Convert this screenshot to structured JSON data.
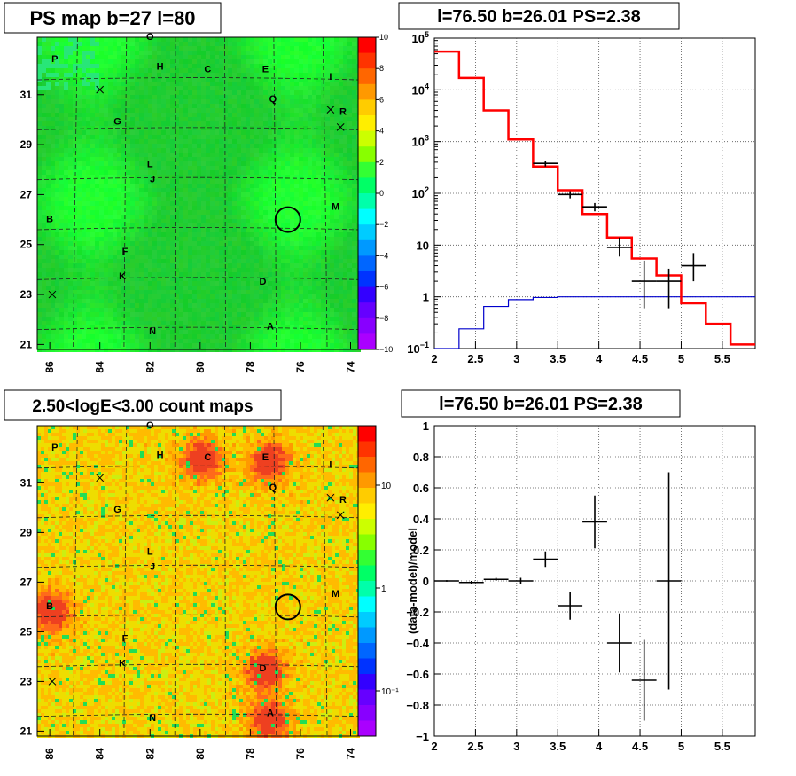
{
  "panels": {
    "ps_map": {
      "title": "PS map b=27 l=80",
      "xticks": [
        "86",
        "84",
        "82",
        "80",
        "78",
        "76",
        "74"
      ],
      "yticks": [
        "31",
        "29",
        "27",
        "25",
        "23",
        "21"
      ],
      "colorbar_ticks": [
        "10",
        "8",
        "6",
        "4",
        "2",
        "0",
        "−2",
        "−4",
        "−6",
        "−8",
        "−10"
      ]
    },
    "spectrum": {
      "title": "l=76.50 b=26.01 PS=2.38"
    },
    "count_map": {
      "title": "2.50<logE<3.00 count maps",
      "xticks": [
        "86",
        "84",
        "82",
        "80",
        "78",
        "76",
        "74"
      ],
      "yticks": [
        "31",
        "29",
        "27",
        "25",
        "23",
        "21"
      ],
      "colorbar_ticks": [
        "10",
        "1",
        "10⁻¹"
      ]
    },
    "residual": {
      "title": "l=76.50 b=26.01 PS=2.38"
    }
  },
  "map_labels": [
    "O",
    "P",
    "H",
    "C",
    "E",
    "I",
    "Q",
    "R",
    "G",
    "L",
    "J",
    "B",
    "M",
    "F",
    "K",
    "D",
    "N",
    "A"
  ],
  "colors": {
    "model": "#ff0000",
    "background": "#0000cc",
    "data": "#000000",
    "map_green": "#33ee33",
    "map_hot": "#ff5a2a"
  },
  "chart_data": [
    {
      "type": "heatmap",
      "title": "PS map b=27 l=80",
      "xlabel": "",
      "ylabel": "",
      "xlim": [
        86.5,
        73.7
      ],
      "ylim": [
        20.8,
        33.3
      ],
      "x_ticks": [
        86,
        84,
        82,
        80,
        78,
        76,
        74
      ],
      "y_ticks": [
        21,
        23,
        25,
        27,
        29,
        31
      ],
      "zlim": [
        -10,
        10
      ],
      "colormap": "rainbow",
      "source_labels": [
        {
          "name": "O",
          "x": 82.0,
          "y": 33.2
        },
        {
          "name": "P",
          "x": 85.8,
          "y": 32.3
        },
        {
          "name": "H",
          "x": 81.6,
          "y": 32.0
        },
        {
          "name": "C",
          "x": 79.7,
          "y": 31.9
        },
        {
          "name": "E",
          "x": 77.4,
          "y": 31.9
        },
        {
          "name": "I",
          "x": 74.8,
          "y": 31.6
        },
        {
          "name": "Q",
          "x": 77.1,
          "y": 30.7
        },
        {
          "name": "R",
          "x": 74.3,
          "y": 30.2
        },
        {
          "name": "G",
          "x": 83.3,
          "y": 29.8
        },
        {
          "name": "L",
          "x": 82.0,
          "y": 28.1
        },
        {
          "name": "J",
          "x": 81.9,
          "y": 27.5
        },
        {
          "name": "B",
          "x": 86.0,
          "y": 25.9
        },
        {
          "name": "M",
          "x": 74.6,
          "y": 26.4
        },
        {
          "name": "F",
          "x": 83.0,
          "y": 24.6
        },
        {
          "name": "K",
          "x": 83.1,
          "y": 23.6
        },
        {
          "name": "D",
          "x": 77.5,
          "y": 23.4
        },
        {
          "name": "N",
          "x": 81.9,
          "y": 21.4
        },
        {
          "name": "A",
          "x": 77.2,
          "y": 21.6
        }
      ],
      "circle": {
        "x": 76.5,
        "y": 26.0
      }
    },
    {
      "type": "line",
      "title": "l=76.50 b=26.01 PS=2.38",
      "xlabel": "",
      "ylabel": "",
      "xlim": [
        2,
        5.9
      ],
      "ylim": [
        0.1,
        100000
      ],
      "yscale": "log",
      "x_ticks": [
        2,
        2.5,
        3,
        3.5,
        4,
        4.5,
        5,
        5.5
      ],
      "y_ticks": [
        0.1,
        1,
        10,
        100,
        1000,
        10000,
        100000
      ],
      "grid": true,
      "series": [
        {
          "type": "step",
          "edges": [
            2.0,
            2.3,
            2.6,
            2.9,
            3.2,
            3.5,
            3.8,
            4.1,
            4.4,
            4.7,
            5.0,
            5.3,
            5.6,
            5.9
          ],
          "values": [
            55000,
            17000,
            4000,
            1100,
            330,
            115,
            40,
            14,
            5.5,
            2.6,
            0.75,
            0.3,
            0.12
          ]
        },
        {
          "type": "step",
          "edges": [
            2.0,
            2.3,
            2.6,
            2.9,
            3.2,
            3.5,
            3.8,
            4.1,
            4.4,
            4.7,
            5.0,
            5.3,
            5.6,
            5.9
          ],
          "values": [
            0.08,
            0.24,
            0.65,
            0.88,
            0.97,
            1.0,
            1.0,
            1.0,
            1.0,
            1.0,
            1.0,
            1.0,
            1.0
          ]
        },
        {
          "type": "errorbar",
          "x": [
            3.35,
            3.65,
            3.95,
            4.25,
            4.55,
            4.85,
            5.15
          ],
          "y": [
            380,
            95,
            55,
            9,
            2,
            2,
            4
          ],
          "xerr": 0.15,
          "ylo": [
            330,
            80,
            45,
            6,
            0.6,
            0.6,
            2
          ],
          "yhi": [
            430,
            110,
            65,
            14,
            5,
            3.5,
            7
          ]
        }
      ]
    },
    {
      "type": "heatmap",
      "title": "2.50<logE<3.00 count maps",
      "xlabel": "",
      "ylabel": "",
      "xlim": [
        86.5,
        73.7
      ],
      "ylim": [
        20.8,
        33.3
      ],
      "x_ticks": [
        86,
        84,
        82,
        80,
        78,
        76,
        74
      ],
      "y_ticks": [
        21,
        23,
        25,
        27,
        29,
        31
      ],
      "zlim": [
        0.01,
        100
      ],
      "zscale": "log",
      "colormap": "rainbow",
      "hot_spots": [
        {
          "x": 80.0,
          "y": 32.0
        },
        {
          "x": 77.3,
          "y": 31.9
        },
        {
          "x": 86.0,
          "y": 25.9
        },
        {
          "x": 77.5,
          "y": 23.5
        },
        {
          "x": 77.3,
          "y": 21.5
        }
      ],
      "circle": {
        "x": 76.5,
        "y": 26.0
      }
    },
    {
      "type": "scatter",
      "title": "l=76.50 b=26.01 PS=2.38",
      "xlabel": "",
      "ylabel": "(data-model)/model",
      "xlim": [
        2,
        5.9
      ],
      "ylim": [
        -1,
        1
      ],
      "x_ticks": [
        2,
        2.5,
        3,
        3.5,
        4,
        4.5,
        5,
        5.5
      ],
      "y_ticks": [
        -1,
        -0.8,
        -0.6,
        -0.4,
        -0.2,
        0,
        0.2,
        0.4,
        0.6,
        0.8,
        1
      ],
      "grid": true,
      "x": [
        2.15,
        2.45,
        2.75,
        3.05,
        3.35,
        3.65,
        3.95,
        4.25,
        4.55,
        4.85
      ],
      "y": [
        0.0,
        -0.01,
        0.01,
        0.0,
        0.14,
        -0.16,
        0.38,
        -0.4,
        -0.64,
        0.0
      ],
      "xerr": 0.15,
      "yerr": [
        0.005,
        0.01,
        0.01,
        0.02,
        0.05,
        0.09,
        0.17,
        0.19,
        0.26,
        0.7
      ]
    }
  ]
}
